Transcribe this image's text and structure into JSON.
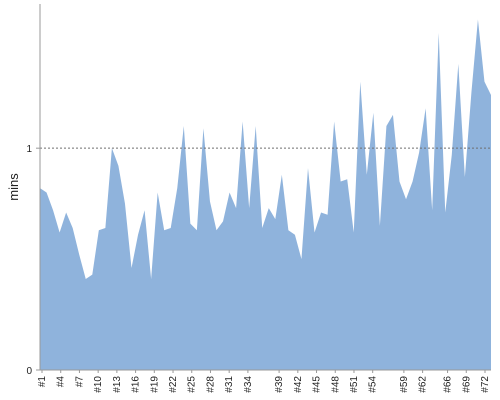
{
  "chart_data": {
    "type": "area",
    "ylabel": "mins",
    "ylim": [
      0,
      1.65
    ],
    "yticks": [
      0,
      1
    ],
    "reference_line": 1,
    "grid": false,
    "colors": {
      "fill": "#8fb3dc",
      "ref_line": "#6f6f6f",
      "axis": "#999999"
    },
    "x_tick_labels": [
      "#1",
      "#4",
      "#7",
      "#10",
      "#13",
      "#16",
      "#19",
      "#22",
      "#25",
      "#28",
      "#31",
      "#34",
      "#39",
      "#42",
      "#45",
      "#48",
      "#51",
      "#54",
      "#59",
      "#62",
      "#66",
      "#69",
      "#72"
    ],
    "values": [
      0.82,
      0.8,
      0.72,
      0.62,
      0.71,
      0.64,
      0.52,
      0.41,
      0.43,
      0.63,
      0.64,
      1.0,
      0.92,
      0.75,
      0.46,
      0.61,
      0.72,
      0.41,
      0.8,
      0.63,
      0.64,
      0.82,
      1.1,
      0.66,
      0.63,
      1.09,
      0.76,
      0.63,
      0.67,
      0.8,
      0.73,
      1.12,
      0.73,
      1.1,
      0.64,
      0.73,
      0.68,
      0.88,
      0.63,
      0.61,
      0.5,
      0.91,
      0.62,
      0.71,
      0.7,
      1.12,
      0.85,
      0.86,
      0.62,
      1.3,
      0.88,
      1.16,
      0.65,
      1.1,
      1.15,
      0.85,
      0.77,
      0.85,
      0.98,
      1.18,
      0.72,
      1.52,
      0.71,
      0.97,
      1.38,
      0.87,
      1.25,
      1.58,
      1.3,
      1.24
    ]
  }
}
